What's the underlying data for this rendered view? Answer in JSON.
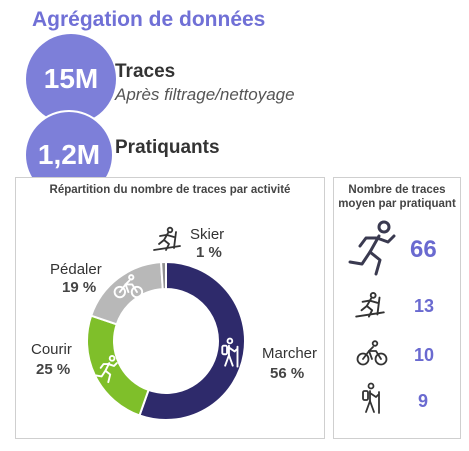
{
  "header": {
    "title": "Agrégation de données"
  },
  "stats": [
    {
      "value": "15M",
      "label": "Traces",
      "sublabel": "Après filtrage/nettoyage"
    },
    {
      "value": "1,2M",
      "label": "Pratiquants"
    }
  ],
  "chart_data": [
    {
      "type": "pie",
      "title": "Répartition du nombre de traces par activité",
      "categories": [
        "Marcher",
        "Courir",
        "Pédaler",
        "Skier"
      ],
      "values": [
        56,
        25,
        19,
        1
      ],
      "value_labels": [
        "56 %",
        "25 %",
        "19 %",
        "1 %"
      ],
      "colors": [
        "#2e2a6b",
        "#7fbf2a",
        "#b8b8b8",
        "#8f8f8f"
      ],
      "icons": [
        "hiker-icon",
        "runner-icon",
        "cyclist-icon",
        "skier-icon"
      ]
    },
    {
      "type": "table",
      "title": "Nombre de traces moyen par pratiquant",
      "rows": [
        {
          "icon": "runner-icon",
          "value": "66"
        },
        {
          "icon": "skier-icon",
          "value": "13"
        },
        {
          "icon": "cyclist-icon",
          "value": "10"
        },
        {
          "icon": "hiker-icon",
          "value": "9"
        }
      ]
    }
  ]
}
